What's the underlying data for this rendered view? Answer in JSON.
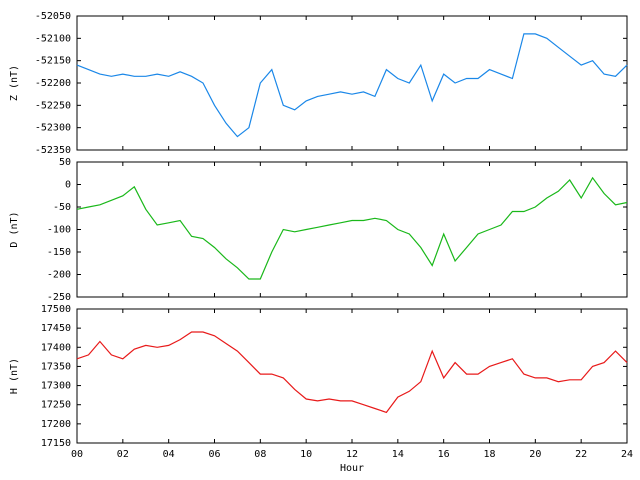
{
  "chart_data": [
    {
      "type": "line",
      "ylabel": "Z (nT)",
      "x": [
        0,
        0.5,
        1,
        1.5,
        2,
        2.5,
        3,
        3.5,
        4,
        4.5,
        5,
        5.5,
        6,
        6.5,
        7,
        7.5,
        8,
        8.5,
        9,
        9.5,
        10,
        10.5,
        11,
        11.5,
        12,
        12.5,
        13,
        13.5,
        14,
        14.5,
        15,
        15.5,
        16,
        16.5,
        17,
        17.5,
        18,
        18.5,
        19,
        19.5,
        20,
        20.5,
        21,
        21.5,
        22,
        22.5,
        23,
        23.5,
        24
      ],
      "series": [
        {
          "color": "#1a87e8",
          "values": [
            -52160,
            -52170,
            -52180,
            -52185,
            -52180,
            -52185,
            -52185,
            -52180,
            -52185,
            -52175,
            -52185,
            -52200,
            -52250,
            -52290,
            -52320,
            -52300,
            -52200,
            -52170,
            -52250,
            -52260,
            -52240,
            -52230,
            -52225,
            -52220,
            -52225,
            -52220,
            -52230,
            -52170,
            -52190,
            -52200,
            -52160,
            -52240,
            -52180,
            -52200,
            -52190,
            -52190,
            -52170,
            -52180,
            -52190,
            -52090,
            -52090,
            -52100,
            -52120,
            -52140,
            -52160,
            -52150,
            -52180,
            -52185,
            -52160
          ]
        }
      ],
      "xlim": [
        0,
        24
      ],
      "xticks": [
        0,
        2,
        4,
        6,
        8,
        10,
        12,
        14,
        16,
        18,
        20,
        22,
        24
      ],
      "ylim": [
        -52350,
        -52050
      ],
      "yticks": [
        -52350,
        -52300,
        -52250,
        -52200,
        -52150,
        -52100,
        -52050
      ]
    },
    {
      "type": "line",
      "ylabel": "D (nT)",
      "x": [
        0,
        0.5,
        1,
        1.5,
        2,
        2.5,
        3,
        3.5,
        4,
        4.5,
        5,
        5.5,
        6,
        6.5,
        7,
        7.5,
        8,
        8.5,
        9,
        9.5,
        10,
        10.5,
        11,
        11.5,
        12,
        12.5,
        13,
        13.5,
        14,
        14.5,
        15,
        15.5,
        16,
        16.5,
        17,
        17.5,
        18,
        18.5,
        19,
        19.5,
        20,
        20.5,
        21,
        21.5,
        22,
        22.5,
        23,
        23.5,
        24
      ],
      "series": [
        {
          "color": "#1ab81a",
          "values": [
            -55,
            -50,
            -45,
            -35,
            -25,
            -5,
            -55,
            -90,
            -85,
            -80,
            -115,
            -120,
            -140,
            -165,
            -185,
            -210,
            -210,
            -150,
            -100,
            -105,
            -100,
            -95,
            -90,
            -85,
            -80,
            -80,
            -75,
            -80,
            -100,
            -110,
            -140,
            -180,
            -110,
            -170,
            -140,
            -110,
            -100,
            -90,
            -60,
            -60,
            -50,
            -30,
            -15,
            10,
            -30,
            15,
            -20,
            -45,
            -40
          ]
        }
      ],
      "xlim": [
        0,
        24
      ],
      "xticks": [
        0,
        2,
        4,
        6,
        8,
        10,
        12,
        14,
        16,
        18,
        20,
        22,
        24
      ],
      "ylim": [
        -250,
        50
      ],
      "yticks": [
        -250,
        -200,
        -150,
        -100,
        -50,
        0,
        50
      ]
    },
    {
      "type": "line",
      "ylabel": "H (nT)",
      "xlabel": "Hour",
      "x": [
        0,
        0.5,
        1,
        1.5,
        2,
        2.5,
        3,
        3.5,
        4,
        4.5,
        5,
        5.5,
        6,
        6.5,
        7,
        7.5,
        8,
        8.5,
        9,
        9.5,
        10,
        10.5,
        11,
        11.5,
        12,
        12.5,
        13,
        13.5,
        14,
        14.5,
        15,
        15.5,
        16,
        16.5,
        17,
        17.5,
        18,
        18.5,
        19,
        19.5,
        20,
        20.5,
        21,
        21.5,
        22,
        22.5,
        23,
        23.5,
        24
      ],
      "series": [
        {
          "color": "#e81a1a",
          "values": [
            17370,
            17380,
            17415,
            17380,
            17370,
            17395,
            17405,
            17400,
            17405,
            17420,
            17440,
            17440,
            17430,
            17410,
            17390,
            17360,
            17330,
            17330,
            17320,
            17290,
            17265,
            17260,
            17265,
            17260,
            17260,
            17250,
            17240,
            17230,
            17270,
            17285,
            17310,
            17390,
            17320,
            17360,
            17330,
            17330,
            17350,
            17360,
            17370,
            17330,
            17320,
            17320,
            17310,
            17315,
            17315,
            17350,
            17360,
            17390,
            17360
          ]
        }
      ],
      "xlim": [
        0,
        24
      ],
      "xticks": [
        {
          "value": 0,
          "label": "00"
        },
        {
          "value": 2,
          "label": "02"
        },
        {
          "value": 4,
          "label": "04"
        },
        {
          "value": 6,
          "label": "06"
        },
        {
          "value": 8,
          "label": "08"
        },
        {
          "value": 10,
          "label": "10"
        },
        {
          "value": 12,
          "label": "12"
        },
        {
          "value": 14,
          "label": "14"
        },
        {
          "value": 16,
          "label": "16"
        },
        {
          "value": 18,
          "label": "18"
        },
        {
          "value": 20,
          "label": "20"
        },
        {
          "value": 22,
          "label": "22"
        },
        {
          "value": 24,
          "label": "24"
        }
      ],
      "ylim": [
        17150,
        17500
      ],
      "yticks": [
        17150,
        17200,
        17250,
        17300,
        17350,
        17400,
        17450,
        17500
      ]
    }
  ]
}
